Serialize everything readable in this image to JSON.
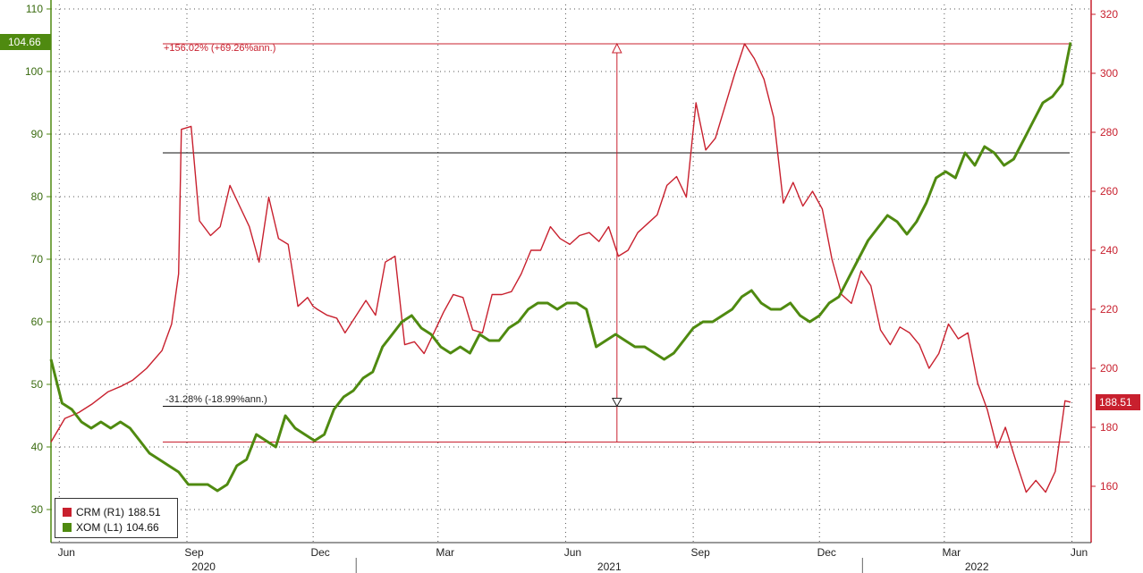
{
  "chart_data": {
    "type": "line",
    "x_axis": {
      "months": [
        "Jun",
        "Sep",
        "Dec",
        "Mar",
        "Jun",
        "Sep",
        "Dec",
        "Mar",
        "Jun"
      ],
      "years": [
        "2020",
        "2021",
        "2022"
      ]
    },
    "left_axis": {
      "ylim": [
        30,
        110
      ],
      "ticks": [
        30,
        40,
        50,
        60,
        70,
        80,
        90,
        100,
        110
      ]
    },
    "right_axis": {
      "ylim": [
        140,
        320
      ],
      "ticks": [
        160,
        180,
        200,
        220,
        240,
        260,
        280,
        300,
        320
      ]
    },
    "grid": true,
    "series": [
      {
        "name": "CRM (R1)",
        "axis": "right",
        "color": "#c8202e",
        "last": "188.51",
        "x": [
          "2020-05-26",
          "2020-06-05",
          "2020-06-15",
          "2020-06-25",
          "2020-07-06",
          "2020-07-16",
          "2020-07-24",
          "2020-08-03",
          "2020-08-14",
          "2020-08-21",
          "2020-08-26",
          "2020-08-28",
          "2020-09-04",
          "2020-09-10",
          "2020-09-18",
          "2020-09-25",
          "2020-10-02",
          "2020-10-09",
          "2020-10-16",
          "2020-10-23",
          "2020-10-30",
          "2020-11-06",
          "2020-11-13",
          "2020-11-20",
          "2020-11-27",
          "2020-12-01",
          "2020-12-04",
          "2020-12-11",
          "2020-12-18",
          "2020-12-24",
          "2021-01-08",
          "2021-01-15",
          "2021-01-22",
          "2021-01-29",
          "2021-02-05",
          "2021-02-12",
          "2021-02-19",
          "2021-02-26",
          "2021-03-05",
          "2021-03-12",
          "2021-03-19",
          "2021-03-26",
          "2021-04-02",
          "2021-04-09",
          "2021-04-16",
          "2021-04-23",
          "2021-04-30",
          "2021-05-07",
          "2021-05-14",
          "2021-05-21",
          "2021-05-28",
          "2021-06-04",
          "2021-06-11",
          "2021-06-18",
          "2021-06-25",
          "2021-07-02",
          "2021-07-09",
          "2021-07-16",
          "2021-07-23",
          "2021-07-30",
          "2021-08-06",
          "2021-08-13",
          "2021-08-20",
          "2021-08-27",
          "2021-09-03",
          "2021-09-10",
          "2021-09-17",
          "2021-09-24",
          "2021-10-01",
          "2021-10-08",
          "2021-10-15",
          "2021-10-22",
          "2021-10-29",
          "2021-11-05",
          "2021-11-12",
          "2021-11-19",
          "2021-11-26",
          "2021-12-03",
          "2021-12-10",
          "2021-12-17",
          "2021-12-24",
          "2021-12-31",
          "2022-01-07",
          "2022-01-14",
          "2022-01-21",
          "2022-01-28",
          "2022-02-04",
          "2022-02-11",
          "2022-02-18",
          "2022-02-25",
          "2022-03-04",
          "2022-03-11",
          "2022-03-18",
          "2022-03-25",
          "2022-04-01",
          "2022-04-08",
          "2022-04-14",
          "2022-04-22",
          "2022-04-29",
          "2022-05-06",
          "2022-05-13",
          "2022-05-20",
          "2022-05-27",
          "2022-05-31"
        ],
        "values": [
          175,
          183,
          185,
          188,
          192,
          194,
          196,
          200,
          206,
          215,
          232,
          281,
          282,
          250,
          245,
          248,
          262,
          255,
          248,
          236,
          258,
          244,
          242,
          221,
          224,
          221,
          220,
          218,
          217,
          212,
          223,
          218,
          236,
          238,
          208,
          209,
          205,
          212,
          219,
          225,
          224,
          213,
          212,
          225,
          225,
          226,
          232,
          240,
          240,
          248,
          244,
          242,
          245,
          246,
          243,
          248,
          238,
          240,
          246,
          249,
          252,
          262,
          265,
          258,
          290,
          274,
          278,
          289,
          300,
          310,
          305,
          298,
          285,
          256,
          263,
          255,
          260,
          254,
          237,
          225,
          222,
          233,
          228,
          213,
          208,
          214,
          212,
          208,
          200,
          205,
          215,
          210,
          212,
          195,
          186,
          173,
          180,
          168,
          158,
          162,
          158,
          165,
          189,
          188.51
        ]
      },
      {
        "name": "XOM (L1)",
        "axis": "left",
        "color": "#4f8a10",
        "last": "104.66",
        "x": [
          "2020-05-26",
          "2020-06-03",
          "2020-06-10",
          "2020-06-17",
          "2020-06-24",
          "2020-07-01",
          "2020-07-08",
          "2020-07-15",
          "2020-07-22",
          "2020-07-29",
          "2020-08-05",
          "2020-08-12",
          "2020-08-19",
          "2020-08-26",
          "2020-09-02",
          "2020-09-09",
          "2020-09-16",
          "2020-09-23",
          "2020-09-30",
          "2020-10-07",
          "2020-10-14",
          "2020-10-21",
          "2020-10-28",
          "2020-11-04",
          "2020-11-11",
          "2020-11-18",
          "2020-11-25",
          "2020-12-02",
          "2020-12-09",
          "2020-12-16",
          "2020-12-23",
          "2020-12-30",
          "2021-01-06",
          "2021-01-13",
          "2021-01-20",
          "2021-01-27",
          "2021-02-03",
          "2021-02-10",
          "2021-02-17",
          "2021-02-24",
          "2021-03-03",
          "2021-03-10",
          "2021-03-17",
          "2021-03-24",
          "2021-03-31",
          "2021-04-07",
          "2021-04-14",
          "2021-04-21",
          "2021-04-28",
          "2021-05-05",
          "2021-05-12",
          "2021-05-19",
          "2021-05-26",
          "2021-06-02",
          "2021-06-09",
          "2021-06-16",
          "2021-06-23",
          "2021-06-30",
          "2021-07-07",
          "2021-07-14",
          "2021-07-21",
          "2021-07-28",
          "2021-08-04",
          "2021-08-11",
          "2021-08-18",
          "2021-08-25",
          "2021-09-01",
          "2021-09-08",
          "2021-09-15",
          "2021-09-22",
          "2021-09-29",
          "2021-10-06",
          "2021-10-13",
          "2021-10-20",
          "2021-10-27",
          "2021-11-03",
          "2021-11-10",
          "2021-11-17",
          "2021-11-24",
          "2021-12-01",
          "2021-12-08",
          "2021-12-15",
          "2021-12-22",
          "2021-12-29",
          "2022-01-05",
          "2022-01-12",
          "2022-01-19",
          "2022-01-26",
          "2022-02-02",
          "2022-02-09",
          "2022-02-16",
          "2022-02-23",
          "2022-03-02",
          "2022-03-09",
          "2022-03-16",
          "2022-03-23",
          "2022-03-30",
          "2022-04-06",
          "2022-04-13",
          "2022-04-20",
          "2022-04-27",
          "2022-05-04",
          "2022-05-11",
          "2022-05-18",
          "2022-05-25",
          "2022-05-31"
        ],
        "values": [
          54,
          47,
          46,
          44,
          43,
          44,
          43,
          44,
          43,
          41,
          39,
          38,
          37,
          36,
          34,
          34,
          34,
          33,
          34,
          37,
          38,
          42,
          41,
          40,
          45,
          43,
          42,
          41,
          42,
          46,
          48,
          49,
          51,
          52,
          56,
          58,
          60,
          61,
          59,
          58,
          56,
          55,
          56,
          55,
          58,
          57,
          57,
          59,
          60,
          62,
          63,
          63,
          62,
          63,
          63,
          62,
          56,
          57,
          58,
          57,
          56,
          56,
          55,
          54,
          55,
          57,
          59,
          60,
          60,
          61,
          62,
          64,
          65,
          63,
          62,
          62,
          63,
          61,
          60,
          61,
          63,
          64,
          67,
          70,
          73,
          75,
          77,
          76,
          74,
          76,
          79,
          83,
          84,
          83,
          87,
          85,
          88,
          87,
          85,
          86,
          89,
          92,
          95,
          96,
          98,
          104.66
        ]
      }
    ],
    "annotations": {
      "upper_label": "+156.02% (+69.26%ann.)",
      "lower_label": "-31.28% (-18.99%ann.)",
      "crm_max_level": 310,
      "crm_min_level": 175,
      "measure_date": "2021-07-08",
      "level_lines_left": [
        87,
        46.5
      ]
    }
  },
  "legend": {
    "crm": {
      "label": "CRM (R1)",
      "value": "188.51"
    },
    "xom": {
      "label": "XOM (L1)",
      "value": "104.66"
    }
  }
}
